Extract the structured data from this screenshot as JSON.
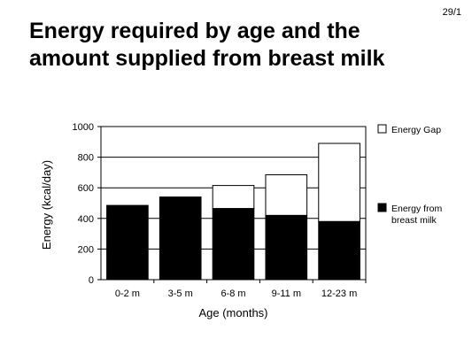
{
  "slide": {
    "number": "29/1",
    "title": "Energy required by age and the amount supplied from breast milk"
  },
  "chart_data": {
    "type": "bar",
    "stacked": true,
    "title": "Energy required by age and the amount supplied from breast milk",
    "xlabel": "Age (months)",
    "ylabel": "Energy (kcal/day)",
    "ylim": [
      0,
      1000
    ],
    "yticks": [
      0,
      200,
      400,
      600,
      800,
      1000
    ],
    "grid": true,
    "legend_position": "right",
    "categories": [
      "0-2 m",
      "3-5 m",
      "6-8 m",
      "9-11 m",
      "12-23 m"
    ],
    "series": [
      {
        "name": "Energy from breast milk",
        "color": "#000000",
        "values": [
          485,
          540,
          465,
          420,
          380
        ]
      },
      {
        "name": "Energy Gap",
        "color": "#ffffff",
        "values": [
          0,
          0,
          150,
          265,
          510
        ]
      }
    ]
  },
  "legend": {
    "items": [
      {
        "label_lines": [
          "Energy Gap"
        ],
        "color": "#ffffff"
      },
      {
        "label_lines": [
          "Energy from",
          "breast milk"
        ],
        "color": "#000000"
      }
    ]
  }
}
